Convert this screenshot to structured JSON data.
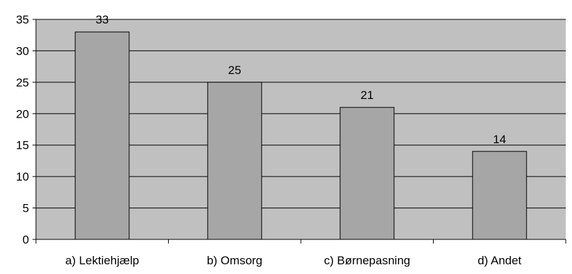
{
  "chart_data": {
    "type": "bar",
    "categories": [
      "a) Lektiehjælp",
      "b) Omsorg",
      "c) Børnepasning",
      "d) Andet"
    ],
    "values": [
      33,
      25,
      21,
      14
    ],
    "data_labels": [
      "33",
      "25",
      "21",
      "14"
    ],
    "title": "",
    "xlabel": "",
    "ylabel": "",
    "ylim": [
      0,
      35
    ],
    "yticks": [
      0,
      5,
      10,
      15,
      20,
      25,
      30,
      35
    ],
    "ytick_labels": [
      "0",
      "5",
      "10",
      "15",
      "20",
      "25",
      "30",
      "35"
    ],
    "grid": true,
    "legend": "none",
    "colors": {
      "plot_background": "#c0c0c0",
      "bar_fill": "#a6a6a6",
      "bar_stroke": "#000000",
      "gridline": "#000000",
      "axis": "#000000"
    }
  }
}
